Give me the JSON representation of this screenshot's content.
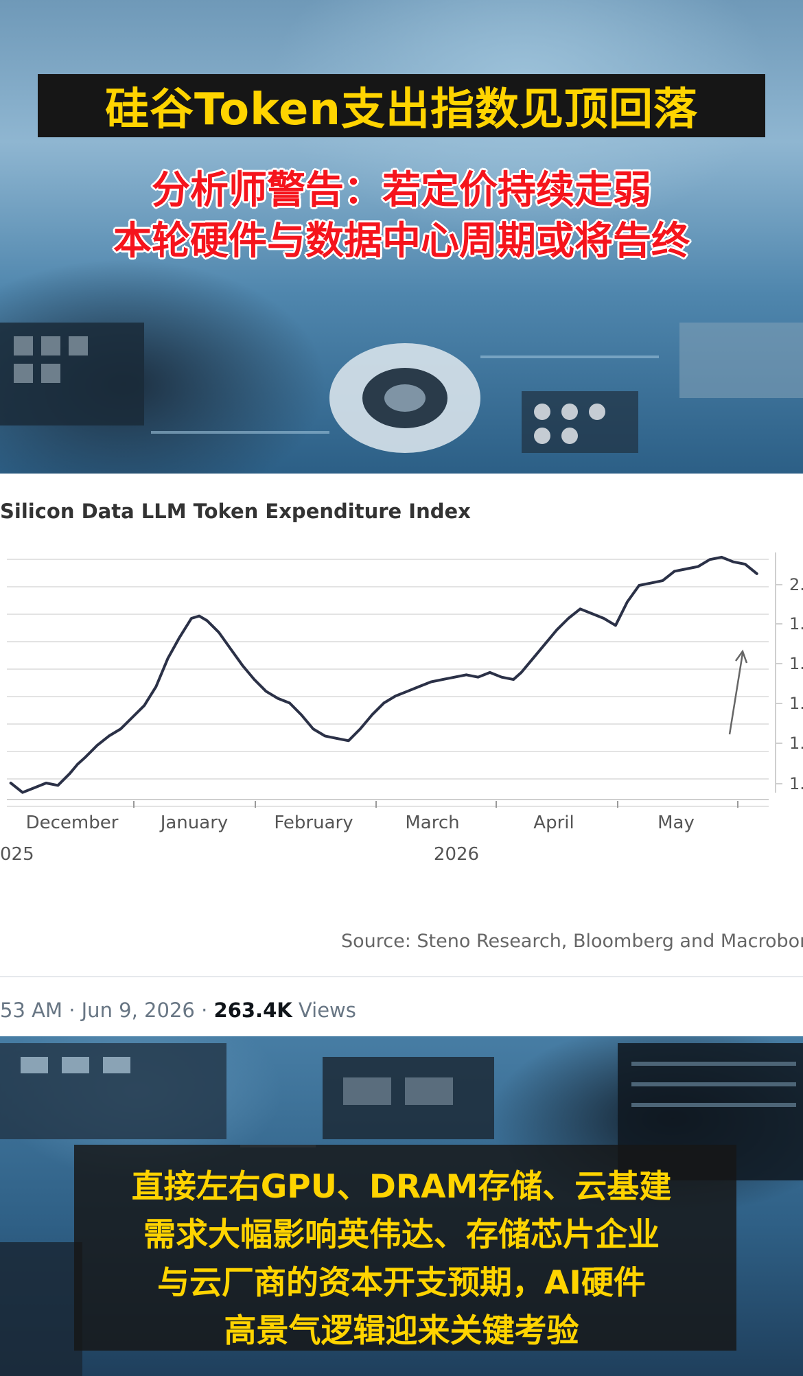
{
  "headline": {
    "title": "硅谷Token支出指数见顶回落",
    "subtitle_line1": "分析师警告：若定价持续走弱",
    "subtitle_line2": "本轮硬件与数据中心周期或将告终"
  },
  "tweet": {
    "time_date": "53 AM · Jun 9, 2026 · ",
    "views_count": "263.4K",
    "views_label": " Views"
  },
  "caption": {
    "line1": "直接左右GPU、DRAM存储、云基建",
    "line2": "需求大幅影响英伟达、存储芯片企业",
    "line3": "与云厂商的资本开支预期，AI硬件",
    "line4": "高景气逻辑迎来关键考验"
  },
  "colors": {
    "title_text": "#ffd400",
    "subtitle_text": "#f5141c",
    "line": "#2b3147",
    "grid": "#e3e3e3"
  },
  "chart_data": {
    "type": "line",
    "title": "Silicon Data LLM Token Expenditure Index",
    "x_tick_labels": [
      "December",
      "January",
      "February",
      "March",
      "April",
      "May"
    ],
    "x_sublabels": [
      "2025",
      "2026"
    ],
    "y_tick_labels": [
      "2.",
      "1.",
      "1.",
      "1.",
      "1.",
      "1."
    ],
    "source": "Source: Steno Research, Bloomberg and Macrobond",
    "grid": true,
    "annotation": "arrow pointing to latest decline",
    "series": [
      {
        "x": [
          "2025-11-23",
          "2025-11-26",
          "2025-11-29",
          "2025-12-02",
          "2025-12-05",
          "2025-12-08",
          "2025-12-10",
          "2025-12-12",
          "2025-12-15",
          "2025-12-18",
          "2025-12-21",
          "2025-12-24",
          "2025-12-27",
          "2025-12-30",
          "2026-01-02",
          "2026-01-05",
          "2026-01-08",
          "2026-01-10",
          "2026-01-12",
          "2026-01-15",
          "2026-01-18",
          "2026-01-21",
          "2026-01-24",
          "2026-01-27",
          "2026-01-30",
          "2026-02-02",
          "2026-02-05",
          "2026-02-08",
          "2026-02-11",
          "2026-02-14",
          "2026-02-17",
          "2026-02-20",
          "2026-02-23",
          "2026-02-26",
          "2026-03-01",
          "2026-03-04",
          "2026-03-07",
          "2026-03-10",
          "2026-03-13",
          "2026-03-16",
          "2026-03-19",
          "2026-03-22",
          "2026-03-25",
          "2026-03-28",
          "2026-03-31",
          "2026-04-02",
          "2026-04-05",
          "2026-04-08",
          "2026-04-11",
          "2026-04-14",
          "2026-04-17",
          "2026-04-20",
          "2026-04-23",
          "2026-04-26",
          "2026-04-29",
          "2026-05-02",
          "2026-05-05",
          "2026-05-08",
          "2026-05-11",
          "2026-05-14",
          "2026-05-17",
          "2026-05-20",
          "2026-05-23",
          "2026-05-26",
          "2026-05-29",
          "2026-06-01"
        ],
        "values": [
          1.02,
          0.98,
          1.0,
          1.02,
          1.01,
          1.06,
          1.1,
          1.13,
          1.18,
          1.22,
          1.25,
          1.3,
          1.35,
          1.43,
          1.55,
          1.64,
          1.72,
          1.73,
          1.71,
          1.66,
          1.59,
          1.52,
          1.46,
          1.41,
          1.38,
          1.36,
          1.31,
          1.25,
          1.22,
          1.21,
          1.2,
          1.25,
          1.31,
          1.36,
          1.39,
          1.41,
          1.43,
          1.45,
          1.46,
          1.47,
          1.48,
          1.47,
          1.49,
          1.47,
          1.46,
          1.49,
          1.55,
          1.61,
          1.67,
          1.72,
          1.76,
          1.74,
          1.72,
          1.69,
          1.79,
          1.86,
          1.87,
          1.88,
          1.92,
          1.93,
          1.94,
          1.97,
          1.98,
          1.96,
          1.95,
          1.91
        ]
      }
    ]
  }
}
